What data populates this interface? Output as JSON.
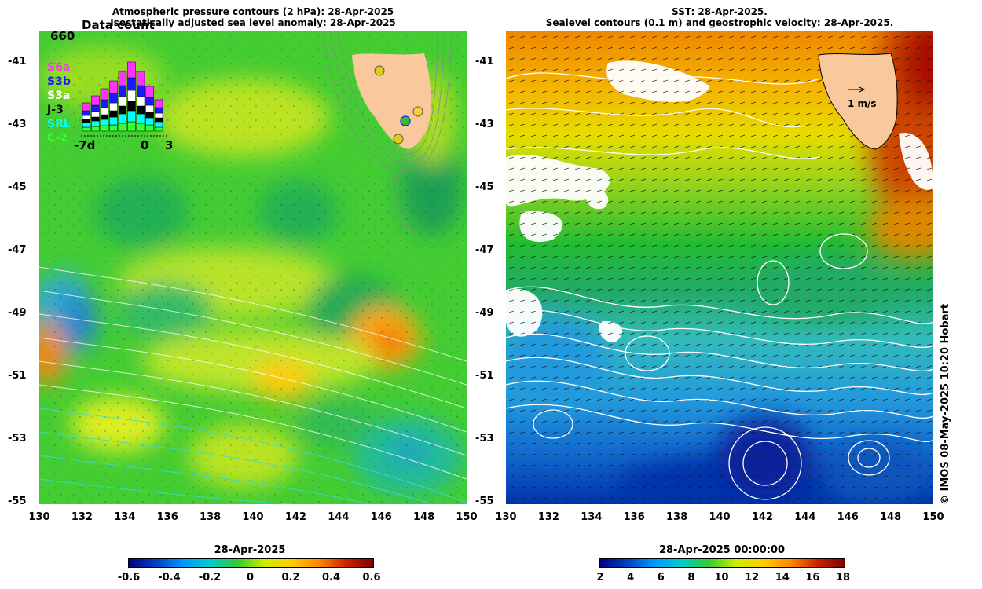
{
  "left_panel": {
    "title_line1": "Atmospheric pressure contours (2 hPa): 28-Apr-2025",
    "title_line2": "Isostatically adjusted sea level anomaly: 28-Apr-2025",
    "colorbar_date": "28-Apr-2025",
    "colorbar_ticks": [
      "-0.6",
      "-0.4",
      "-0.2",
      "0",
      "0.2",
      "0.4",
      "0.6"
    ],
    "inset": {
      "title": "Data count",
      "max_count": "660",
      "x_labels": [
        "-7d",
        "0",
        "3"
      ],
      "missions": [
        {
          "name": "S6a",
          "color": "#ff33ff"
        },
        {
          "name": "S3b",
          "color": "#1a1aff"
        },
        {
          "name": "S3a",
          "color": "#ffffff"
        },
        {
          "name": "J-3",
          "color": "#000000"
        },
        {
          "name": "SRL",
          "color": "#00ffff"
        },
        {
          "name": "C-2",
          "color": "#33ff33"
        }
      ]
    }
  },
  "right_panel": {
    "title_line1": "SST: 28-Apr-2025.",
    "title_line2": "Sealevel contours (0.1 m) and geostrophic velocity: 28-Apr-2025.",
    "colorbar_date": "28-Apr-2025 00:00:00",
    "colorbar_ticks": [
      "2",
      "4",
      "6",
      "8",
      "10",
      "12",
      "14",
      "16",
      "18"
    ],
    "velocity_scale": "1 m/s"
  },
  "axes": {
    "lat_ticks": [
      "-41",
      "-43",
      "-45",
      "-47",
      "-49",
      "-51",
      "-53",
      "-55"
    ],
    "lon_ticks": [
      "130",
      "132",
      "134",
      "136",
      "138",
      "140",
      "142",
      "144",
      "146",
      "148",
      "150"
    ]
  },
  "credit": "© IMOS 08-May-2025 10:20 Hobart",
  "colors": {
    "land": "#f9c89d",
    "sla_base": "#33cc33",
    "sst_warm": "#e64d00",
    "sst_cold": "#0033aa"
  }
}
